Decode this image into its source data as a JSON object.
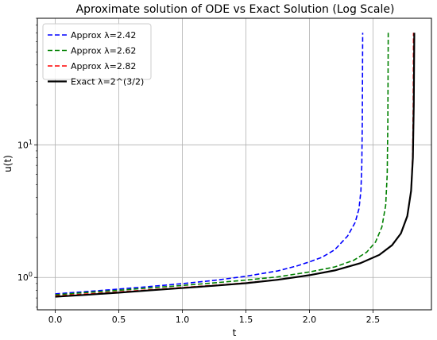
{
  "chart_data": {
    "type": "line",
    "title": "Aproximate solution of ODE vs Exact Solution (Log Scale)",
    "xlabel": "t",
    "ylabel": "u(t)",
    "xlim": [
      -0.141,
      2.96
    ],
    "ylim": [
      0.57,
      90
    ],
    "yscale": "log",
    "grid": true,
    "legend_position": "upper-left",
    "x_ticks": [
      {
        "value": 0.0,
        "label": "0.0"
      },
      {
        "value": 0.5,
        "label": "0.5"
      },
      {
        "value": 1.0,
        "label": "1.0"
      },
      {
        "value": 1.5,
        "label": "1.5"
      },
      {
        "value": 2.0,
        "label": "2.0"
      },
      {
        "value": 2.5,
        "label": "2.5"
      }
    ],
    "y_ticks": [
      {
        "value": 1,
        "base": "10",
        "exp": "0"
      },
      {
        "value": 10,
        "base": "10",
        "exp": "1"
      }
    ],
    "series": [
      {
        "name": "Approx λ=2.42",
        "color": "#0000ff",
        "dash": "dashed",
        "points": [
          [
            0,
            0.752
          ],
          [
            0.25,
            0.783
          ],
          [
            0.5,
            0.817
          ],
          [
            0.75,
            0.855
          ],
          [
            1.0,
            0.898
          ],
          [
            1.25,
            0.95
          ],
          [
            1.5,
            1.02
          ],
          [
            1.75,
            1.12
          ],
          [
            1.9,
            1.22
          ],
          [
            2.0,
            1.31
          ],
          [
            2.1,
            1.42
          ],
          [
            2.2,
            1.62
          ],
          [
            2.3,
            2.05
          ],
          [
            2.36,
            2.6
          ],
          [
            2.39,
            3.3
          ],
          [
            2.405,
            4.5
          ],
          [
            2.412,
            7
          ],
          [
            2.416,
            15
          ],
          [
            2.418,
            40
          ],
          [
            2.419,
            70
          ]
        ]
      },
      {
        "name": "Approx λ=2.62",
        "color": "#008000",
        "dash": "dashed",
        "points": [
          [
            0,
            0.74
          ],
          [
            0.25,
            0.77
          ],
          [
            0.5,
            0.8
          ],
          [
            0.75,
            0.835
          ],
          [
            1.0,
            0.87
          ],
          [
            1.25,
            0.91
          ],
          [
            1.5,
            0.955
          ],
          [
            1.75,
            1.01
          ],
          [
            2.0,
            1.1
          ],
          [
            2.2,
            1.2
          ],
          [
            2.35,
            1.35
          ],
          [
            2.45,
            1.55
          ],
          [
            2.52,
            1.85
          ],
          [
            2.57,
            2.4
          ],
          [
            2.6,
            3.5
          ],
          [
            2.612,
            6
          ],
          [
            2.617,
            15
          ],
          [
            2.619,
            40
          ],
          [
            2.62,
            70
          ]
        ]
      },
      {
        "name": "Approx λ=2.82",
        "color": "#ff0000",
        "dash": "dashed",
        "points": [
          [
            0,
            0.725
          ],
          [
            0.25,
            0.75
          ],
          [
            0.5,
            0.778
          ],
          [
            0.75,
            0.808
          ],
          [
            1.0,
            0.84
          ],
          [
            1.25,
            0.872
          ],
          [
            1.5,
            0.91
          ],
          [
            1.75,
            0.962
          ],
          [
            2.0,
            1.04
          ],
          [
            2.2,
            1.13
          ],
          [
            2.4,
            1.28
          ],
          [
            2.55,
            1.48
          ],
          [
            2.65,
            1.75
          ],
          [
            2.72,
            2.15
          ],
          [
            2.77,
            2.9
          ],
          [
            2.8,
            4.5
          ],
          [
            2.812,
            8
          ],
          [
            2.817,
            20
          ],
          [
            2.819,
            70
          ]
        ]
      },
      {
        "name": "Exact λ=2^(3/2)",
        "color": "#000000",
        "dash": "solid",
        "points": [
          [
            0,
            0.715
          ],
          [
            0.25,
            0.74
          ],
          [
            0.5,
            0.768
          ],
          [
            0.75,
            0.8
          ],
          [
            1.0,
            0.832
          ],
          [
            1.25,
            0.866
          ],
          [
            1.5,
            0.905
          ],
          [
            1.75,
            0.96
          ],
          [
            2.0,
            1.04
          ],
          [
            2.2,
            1.13
          ],
          [
            2.4,
            1.28
          ],
          [
            2.55,
            1.48
          ],
          [
            2.65,
            1.75
          ],
          [
            2.72,
            2.15
          ],
          [
            2.77,
            2.9
          ],
          [
            2.8,
            4.5
          ],
          [
            2.814,
            8
          ],
          [
            2.821,
            20
          ],
          [
            2.825,
            70
          ]
        ]
      }
    ]
  }
}
